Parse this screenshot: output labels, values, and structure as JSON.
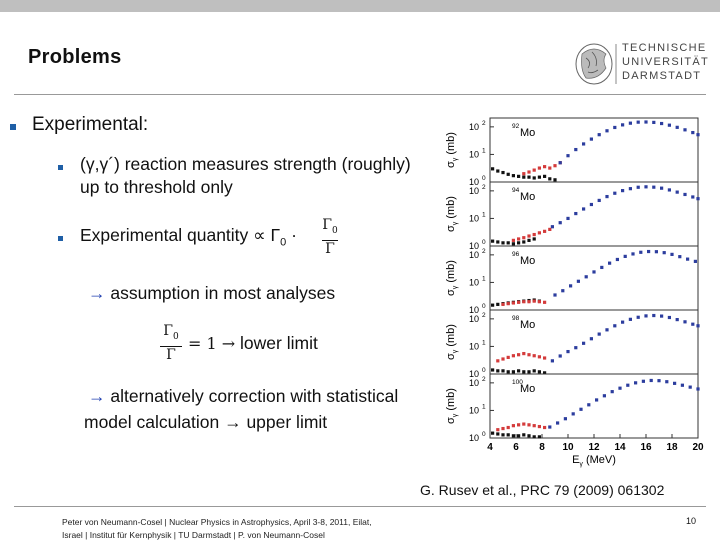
{
  "slide": {
    "title": "Problems",
    "logo": {
      "line1": "TECHNISCHE",
      "line2": "UNIVERSITÄT",
      "line3": "DARMSTADT"
    },
    "bullet_main": "Experimental:",
    "item1_prefix": "(γ,γ´) reaction measures strength (roughly)",
    "item1_suffix": "up to threshold only",
    "item2_text": "Experimental quantity ∝ Γ",
    "item2_sub": "0",
    "item2_dot": "·",
    "item2_frac_num": "Γ",
    "item2_frac_num_sub": "0",
    "item2_frac_den": "Γ",
    "arrow": "→",
    "assumption_text": "assumption in most analyses",
    "ratio_num": "Γ",
    "ratio_num_sub": "0",
    "ratio_den": "Γ",
    "ratio_eq": "= 1 →",
    "ratio_label": "lower limit",
    "alt_line1": "alternatively correction with statistical",
    "alt_line2": "model calculation → upper limit",
    "caption": "G. Rusev et al., PRC 79 (2009) 061302",
    "footer_line1": "Peter von Neumann-Cosel | Nuclear Physics in Astrophysics, April 3-8, 2011, Eilat,",
    "footer_line2": "Israel | Institut für Kernphysik | TU Darmstadt | P. von Neumann-Cosel",
    "page_number": "10"
  },
  "chart_data": {
    "type": "scatter",
    "title": "",
    "xlabel": "E",
    "xlabel_sub": "γ",
    "xlabel_unit": "(MeV)",
    "ylabel": "σ",
    "ylabel_sub": "γ",
    "ylabel_unit": "(mb)",
    "xlim": [
      4,
      20
    ],
    "xticks": [
      "4",
      "6",
      "8",
      "10",
      "12",
      "14",
      "16",
      "18",
      "20"
    ],
    "yscale": "log",
    "ylim": [
      1,
      150
    ],
    "ytick_labels": [
      "10",
      "10",
      "10"
    ],
    "ytick_exponents": [
      "0",
      "1",
      "2"
    ],
    "panels": [
      {
        "label_mass": "92",
        "label_element": "Mo",
        "series": [
          {
            "name": "black",
            "color": "#111111",
            "x": [
              4.2,
              4.6,
              5.0,
              5.4,
              5.8,
              6.2,
              6.6,
              7.0,
              7.4,
              7.8,
              8.2,
              8.6,
              9.0
            ],
            "y": [
              3.0,
              2.5,
              2.2,
              1.9,
              1.7,
              1.6,
              1.5,
              1.5,
              1.4,
              1.5,
              1.6,
              1.3,
              1.2
            ]
          },
          {
            "name": "red",
            "color": "#d43b3b",
            "x": [
              6.6,
              7.0,
              7.4,
              7.8,
              8.2,
              8.6,
              9.0,
              9.4
            ],
            "y": [
              2.0,
              2.3,
              2.7,
              3.2,
              3.6,
              3.2,
              3.9,
              5.0
            ]
          },
          {
            "name": "blue",
            "color": "#2c3d9e",
            "x": [
              9.4,
              10.0,
              10.6,
              11.2,
              11.8,
              12.4,
              13.0,
              13.6,
              14.2,
              14.8,
              15.4,
              16.0,
              16.6,
              17.2,
              17.8,
              18.4,
              19.0,
              19.6,
              20.0
            ],
            "y": [
              5.0,
              9.0,
              15.0,
              24.0,
              36.0,
              52.0,
              72.0,
              95.0,
              118.0,
              136.0,
              148.0,
              150.0,
              145.0,
              132.0,
              115.0,
              96.0,
              78.0,
              62.0,
              52.0
            ]
          }
        ]
      },
      {
        "label_mass": "94",
        "label_element": "Mo",
        "series": [
          {
            "name": "black",
            "color": "#111111",
            "x": [
              4.2,
              4.6,
              5.0,
              5.4,
              5.8,
              6.2,
              6.6,
              7.0,
              7.4
            ],
            "y": [
              1.5,
              1.4,
              1.3,
              1.3,
              1.2,
              1.3,
              1.4,
              1.6,
              1.8
            ]
          },
          {
            "name": "red",
            "color": "#d43b3b",
            "x": [
              5.8,
              6.2,
              6.6,
              7.0,
              7.4,
              7.8,
              8.2,
              8.6
            ],
            "y": [
              1.6,
              1.8,
              2.0,
              2.3,
              2.6,
              3.0,
              3.4,
              4.0
            ]
          },
          {
            "name": "blue",
            "color": "#2c3d9e",
            "x": [
              8.8,
              9.4,
              10.0,
              10.6,
              11.2,
              11.8,
              12.4,
              13.0,
              13.6,
              14.2,
              14.8,
              15.4,
              16.0,
              16.6,
              17.2,
              17.8,
              18.4,
              19.0,
              19.6,
              20.0
            ],
            "y": [
              5.0,
              7.0,
              10.0,
              15.0,
              22.0,
              32.0,
              45.0,
              62.0,
              82.0,
              102.0,
              120.0,
              135.0,
              140.0,
              136.0,
              125.0,
              108.0,
              90.0,
              74.0,
              60.0,
              52.0
            ]
          }
        ]
      },
      {
        "label_mass": "96",
        "label_element": "Mo",
        "series": [
          {
            "name": "black",
            "color": "#111111",
            "x": [
              4.2,
              4.6,
              5.0,
              5.4,
              5.8,
              6.2,
              6.6,
              7.0,
              7.4,
              7.8
            ],
            "y": [
              1.5,
              1.6,
              1.7,
              1.8,
              1.9,
              2.0,
              2.1,
              2.2,
              2.3,
              2.1
            ]
          },
          {
            "name": "red",
            "color": "#d43b3b",
            "x": [
              5.0,
              5.4,
              5.8,
              6.2,
              6.6,
              7.0,
              7.4,
              7.8,
              8.2
            ],
            "y": [
              1.6,
              1.7,
              1.8,
              1.9,
              2.0,
              2.0,
              2.1,
              2.0,
              1.9
            ]
          },
          {
            "name": "blue",
            "color": "#2c3d9e",
            "x": [
              9.0,
              9.6,
              10.2,
              10.8,
              11.4,
              12.0,
              12.6,
              13.2,
              13.8,
              14.4,
              15.0,
              15.6,
              16.2,
              16.8,
              17.4,
              18.0,
              18.6,
              19.2,
              19.8
            ],
            "y": [
              3.5,
              5.0,
              7.5,
              11.0,
              16.0,
              24.0,
              35.0,
              50.0,
              68.0,
              88.0,
              108.0,
              124.0,
              132.0,
              130.0,
              120.0,
              104.0,
              86.0,
              70.0,
              58.0
            ]
          }
        ]
      },
      {
        "label_mass": "98",
        "label_element": "Mo",
        "series": [
          {
            "name": "black",
            "color": "#111111",
            "x": [
              4.2,
              4.6,
              5.0,
              5.4,
              5.8,
              6.2,
              6.6,
              7.0,
              7.4,
              7.8,
              8.2
            ],
            "y": [
              1.4,
              1.3,
              1.3,
              1.2,
              1.2,
              1.3,
              1.2,
              1.2,
              1.3,
              1.2,
              1.1
            ]
          },
          {
            "name": "red",
            "color": "#d43b3b",
            "x": [
              4.6,
              5.0,
              5.4,
              5.8,
              6.2,
              6.6,
              7.0,
              7.4,
              7.8,
              8.2
            ],
            "y": [
              3.0,
              3.5,
              4.0,
              4.6,
              5.0,
              5.5,
              5.0,
              4.6,
              4.2,
              3.8
            ]
          },
          {
            "name": "blue",
            "color": "#2c3d9e",
            "x": [
              8.8,
              9.4,
              10.0,
              10.6,
              11.2,
              11.8,
              12.4,
              13.0,
              13.6,
              14.2,
              14.8,
              15.4,
              16.0,
              16.6,
              17.2,
              17.8,
              18.4,
              19.0,
              19.6,
              20.0
            ],
            "y": [
              3.0,
              4.5,
              6.5,
              9.0,
              13.0,
              19.0,
              28.0,
              40.0,
              56.0,
              76.0,
              96.0,
              114.0,
              128.0,
              132.0,
              126.0,
              112.0,
              94.0,
              78.0,
              64.0,
              56.0
            ]
          }
        ]
      },
      {
        "label_mass": "100",
        "label_element": "Mo",
        "series": [
          {
            "name": "black",
            "color": "#111111",
            "x": [
              4.2,
              4.6,
              5.0,
              5.4,
              5.8,
              6.2,
              6.6,
              7.0,
              7.4,
              7.8
            ],
            "y": [
              1.5,
              1.4,
              1.3,
              1.3,
              1.2,
              1.2,
              1.3,
              1.2,
              1.1,
              1.1
            ]
          },
          {
            "name": "red",
            "color": "#d43b3b",
            "x": [
              4.6,
              5.0,
              5.4,
              5.8,
              6.2,
              6.6,
              7.0,
              7.4,
              7.8,
              8.2
            ],
            "y": [
              2.0,
              2.2,
              2.4,
              2.8,
              3.0,
              3.2,
              3.0,
              2.8,
              2.6,
              2.4
            ]
          },
          {
            "name": "blue",
            "color": "#2c3d9e",
            "x": [
              8.6,
              9.2,
              9.8,
              10.4,
              11.0,
              11.6,
              12.2,
              12.8,
              13.4,
              14.0,
              14.6,
              15.2,
              15.8,
              16.4,
              17.0,
              17.6,
              18.2,
              18.8,
              19.4,
              20.0
            ],
            "y": [
              2.5,
              3.5,
              5.0,
              7.5,
              11.0,
              16.0,
              24.0,
              34.0,
              48.0,
              64.0,
              82.0,
              100.0,
              114.0,
              122.0,
              120.0,
              110.0,
              96.0,
              82.0,
              70.0,
              60.0
            ]
          }
        ]
      }
    ]
  }
}
